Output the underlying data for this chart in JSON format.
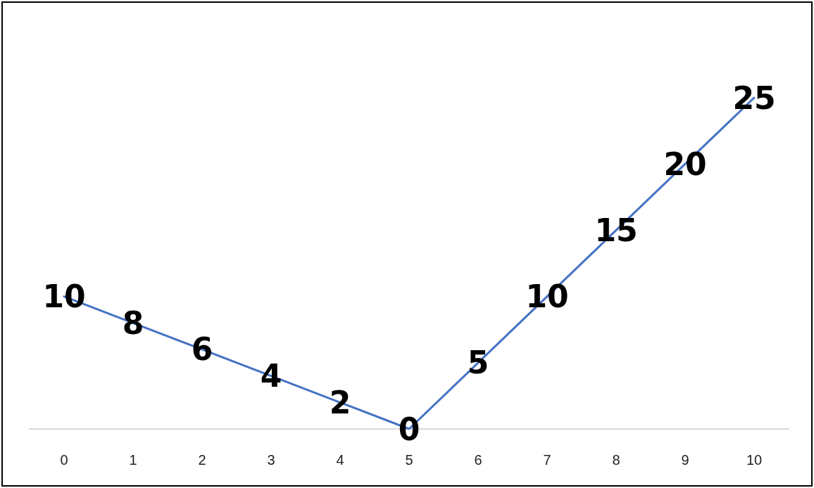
{
  "chart_data": {
    "type": "line",
    "categories": [
      "0",
      "1",
      "2",
      "3",
      "4",
      "5",
      "6",
      "7",
      "8",
      "9",
      "10"
    ],
    "series": [
      {
        "color": "#4472c4",
        "values": [
          10,
          8,
          6,
          4,
          2,
          0,
          5,
          10,
          15,
          20,
          25
        ]
      }
    ],
    "data_labels": true,
    "marker": "none",
    "line_style": "solid",
    "grid": false,
    "tick_labels": "x"
  }
}
